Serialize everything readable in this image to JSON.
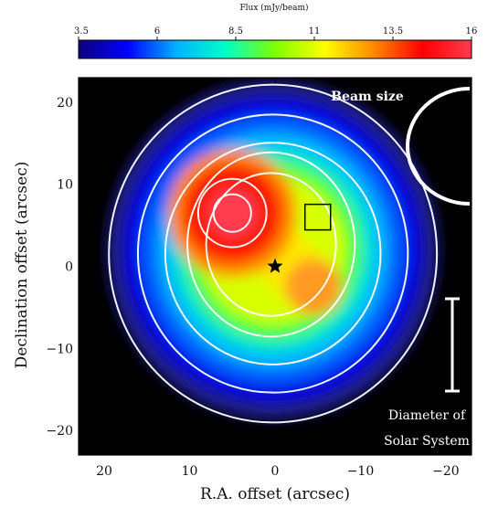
{
  "chart_data": {
    "type": "heatmap",
    "colorbar": {
      "label": "Flux (mJy/beam)",
      "ticks": [
        "3.5",
        "6",
        "8.5",
        "11",
        "13.5",
        "16"
      ],
      "range": [
        3.5,
        16
      ],
      "colors": [
        "#0d0080",
        "#0000ff",
        "#00b4ff",
        "#00ffc8",
        "#7dff00",
        "#ffff00",
        "#ff8a00",
        "#ff0000",
        "#ff3c50"
      ]
    },
    "xlabel": "R.A. offset (arcsec)",
    "ylabel": "Declination offset (arcsec)",
    "xlim": [
      23,
      -23
    ],
    "ylim": [
      -23,
      23
    ],
    "xticks": [
      "20",
      "10",
      "0",
      "−10",
      "−20"
    ],
    "xtick_values": [
      20,
      10,
      0,
      -10,
      -20
    ],
    "yticks": [
      "20",
      "10",
      "0",
      "−10",
      "−20"
    ],
    "ytick_values": [
      20,
      10,
      0,
      -10,
      -20
    ],
    "background": "#000000",
    "peaks": [
      {
        "x": 5.0,
        "y": 6.5,
        "value": 16
      },
      {
        "x": -4.5,
        "y": -2.5,
        "value": 13.5
      }
    ],
    "star_marker": {
      "x": 0,
      "y": 0
    },
    "box_marker": {
      "x": -5,
      "y": 6
    },
    "annotations": {
      "beam_size": "Beam size",
      "scale_bar_line1": "Diameter of",
      "scale_bar_line2": "Solar System"
    }
  }
}
